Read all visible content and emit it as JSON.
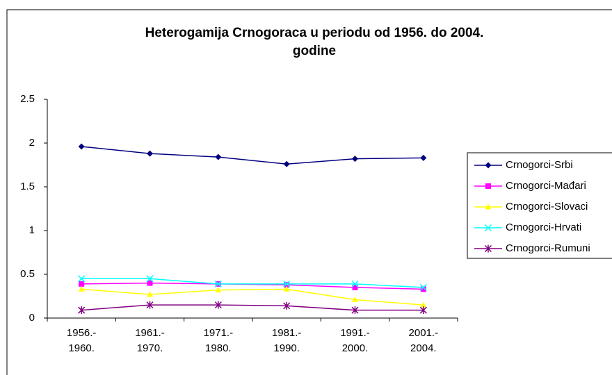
{
  "chart_data": {
    "type": "line",
    "title": "Heterogamija Crnogoraca u periodu od 1956. do 2004.\ngodine",
    "categories": [
      "1956.-\n1960.",
      "1961.-\n1970.",
      "1971.-\n1980.",
      "1981.-\n1990.",
      "1991.-\n2000.",
      "2001.-\n2004."
    ],
    "series": [
      {
        "name": "Crnogorci-Srbi",
        "color": "#000080",
        "marker": "diamond",
        "values": [
          1.96,
          1.88,
          1.84,
          1.76,
          1.82,
          1.83
        ]
      },
      {
        "name": "Crnogorci-Mađari",
        "color": "#ff00ff",
        "marker": "square",
        "values": [
          0.39,
          0.4,
          0.39,
          0.38,
          0.35,
          0.33
        ]
      },
      {
        "name": "Crnogorci-Slovaci",
        "color": "#ffff00",
        "marker": "triangle",
        "values": [
          0.33,
          0.27,
          0.32,
          0.33,
          0.21,
          0.15
        ]
      },
      {
        "name": "Crnogorci-Hrvati",
        "color": "#00ffff",
        "marker": "x",
        "values": [
          0.45,
          0.45,
          0.39,
          0.39,
          0.39,
          0.35
        ]
      },
      {
        "name": "Crnogorci-Rumuni",
        "color": "#800080",
        "marker": "star",
        "values": [
          0.09,
          0.15,
          0.15,
          0.14,
          0.09,
          0.09
        ]
      }
    ],
    "ylim": [
      0,
      2.5
    ],
    "yticks": [
      0,
      0.5,
      1,
      1.5,
      2,
      2.5
    ],
    "grid": false,
    "legend": "right"
  }
}
